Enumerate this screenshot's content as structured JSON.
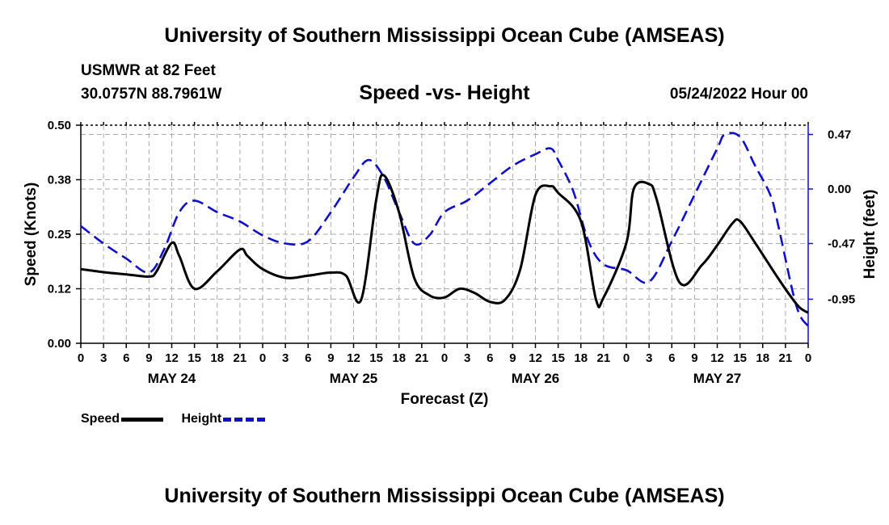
{
  "page": {
    "main_title": "University of Southern Mississippi Ocean Cube (AMSEAS)",
    "station": "USMWR at 82 Feet",
    "coords": "30.0757N  88.7961W",
    "chart_title": "Speed -vs- Height",
    "date": "05/24/2022 Hour 00",
    "bottom_title": "University of Southern Mississippi Ocean Cube (AMSEAS)"
  },
  "colors": {
    "speed": "#000000",
    "height": "#1010c8",
    "grid": "#aaaaaa"
  },
  "chart_data": {
    "type": "line",
    "xlabel": "Forecast (Z)",
    "ylabel_left": "Speed (Knots)",
    "ylabel_right": "Height (feet)",
    "x_range": [
      0,
      96
    ],
    "ylim_left": [
      0,
      0.5
    ],
    "ylim_right": [
      -1.33,
      0.55
    ],
    "left_ticks": [
      "0.00",
      "0.12",
      "0.25",
      "0.38",
      "0.50"
    ],
    "left_tick_values": [
      0,
      0.125,
      0.25,
      0.375,
      0.5
    ],
    "right_ticks": [
      "-0.95",
      "-0.47",
      "0.00",
      "0.47"
    ],
    "right_tick_values": [
      -0.95,
      -0.47,
      0.0,
      0.47
    ],
    "x_tick_labels": [
      "0",
      "3",
      "6",
      "9",
      "12",
      "15",
      "18",
      "21",
      "0",
      "3",
      "6",
      "9",
      "12",
      "15",
      "18",
      "21",
      "0",
      "3",
      "6",
      "9",
      "12",
      "15",
      "18",
      "21",
      "0",
      "3",
      "6",
      "9",
      "12",
      "15",
      "18",
      "21",
      "0"
    ],
    "date_labels": [
      {
        "label": "MAY 24",
        "hour": 12
      },
      {
        "label": "MAY 25",
        "hour": 36
      },
      {
        "label": "MAY 26",
        "hour": 60
      },
      {
        "label": "MAY 27",
        "hour": 84
      }
    ],
    "series": [
      {
        "name": "Speed",
        "style": "solid",
        "x": [
          0,
          3,
          6,
          9,
          10,
          12,
          13,
          15,
          18,
          21,
          22,
          24,
          27,
          30,
          33,
          35,
          37,
          39,
          40,
          42,
          44,
          46,
          48,
          50,
          52,
          54,
          56,
          58,
          60,
          62,
          63,
          66,
          68,
          69,
          72,
          73,
          75,
          76,
          79,
          82,
          84,
          86,
          87,
          89,
          92,
          94,
          95,
          96
        ],
        "values": [
          0.17,
          0.163,
          0.158,
          0.153,
          0.165,
          0.23,
          0.2,
          0.125,
          0.165,
          0.215,
          0.2,
          0.17,
          0.15,
          0.155,
          0.162,
          0.155,
          0.1,
          0.33,
          0.385,
          0.3,
          0.15,
          0.11,
          0.105,
          0.125,
          0.115,
          0.095,
          0.1,
          0.17,
          0.34,
          0.36,
          0.345,
          0.28,
          0.1,
          0.105,
          0.23,
          0.355,
          0.365,
          0.33,
          0.14,
          0.18,
          0.225,
          0.275,
          0.28,
          0.23,
          0.15,
          0.1,
          0.08,
          0.07
        ]
      },
      {
        "name": "Height",
        "style": "dashed",
        "x": [
          0,
          3,
          6,
          9,
          11,
          13,
          15,
          18,
          21,
          24,
          27,
          30,
          33,
          36,
          38,
          40,
          42,
          44,
          46,
          48,
          51,
          54,
          57,
          60,
          62,
          63,
          65,
          67,
          69,
          72,
          75,
          78,
          81,
          84,
          85,
          87,
          89,
          91,
          92,
          94,
          95,
          96
        ],
        "values": [
          -0.32,
          -0.47,
          -0.6,
          -0.72,
          -0.52,
          -0.2,
          -0.1,
          -0.2,
          -0.28,
          -0.4,
          -0.47,
          -0.45,
          -0.2,
          0.1,
          0.25,
          0.1,
          -0.2,
          -0.47,
          -0.4,
          -0.2,
          -0.1,
          0.05,
          0.2,
          0.3,
          0.35,
          0.25,
          -0.02,
          -0.45,
          -0.65,
          -0.7,
          -0.8,
          -0.45,
          -0.05,
          0.35,
          0.47,
          0.45,
          0.2,
          -0.05,
          -0.3,
          -0.9,
          -1.1,
          -1.18
        ]
      }
    ],
    "legend": [
      {
        "label": "Speed",
        "style": "solid"
      },
      {
        "label": "Height",
        "style": "dashed"
      }
    ]
  }
}
